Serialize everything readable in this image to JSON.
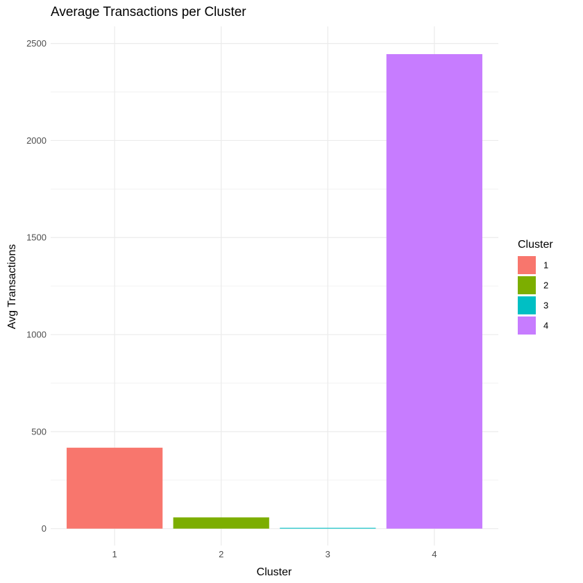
{
  "chart_data": {
    "type": "bar",
    "title": "Average Transactions per Cluster",
    "xlabel": "Cluster",
    "ylabel": "Avg Transactions",
    "categories": [
      "1",
      "2",
      "3",
      "4"
    ],
    "values": [
      417,
      58,
      4,
      2445
    ],
    "ylim": [
      -87,
      2588
    ],
    "yticks": [
      0,
      500,
      1000,
      1500,
      2000,
      2500
    ],
    "grid": true,
    "legend": {
      "title": "Cluster",
      "placement": "right",
      "entries": [
        {
          "label": "1",
          "color": "#F8766D"
        },
        {
          "label": "2",
          "color": "#7CAE00"
        },
        {
          "label": "3",
          "color": "#00BFC4"
        },
        {
          "label": "4",
          "color": "#C77CFF"
        }
      ]
    },
    "colors": [
      "#F8766D",
      "#7CAE00",
      "#00BFC4",
      "#C77CFF"
    ]
  }
}
